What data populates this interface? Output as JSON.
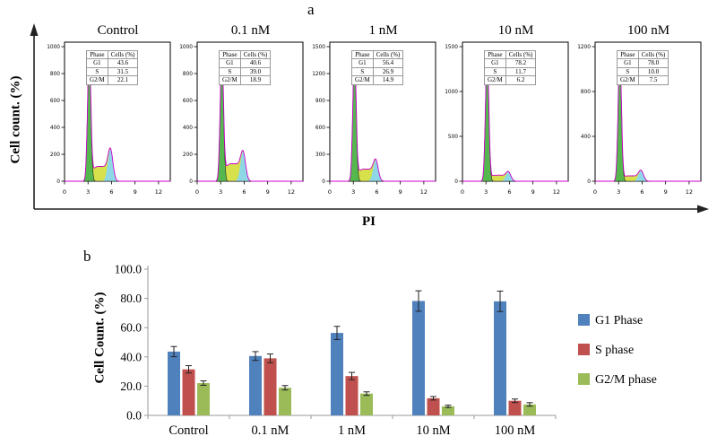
{
  "chart_data": [
    {
      "type": "area",
      "title": "Cell cycle distribution flow cytometry histograms (PI staining)",
      "xlabel": "PI",
      "ylabel": "Cell count. (%)",
      "x_ticks": [
        0,
        3,
        6,
        9,
        12
      ],
      "panels": [
        {
          "title": "Control",
          "phases": {
            "G1": 43.6,
            "S": 31.5,
            "G2/M": 22.1
          }
        },
        {
          "title": "0.1 nM",
          "phases": {
            "G1": 40.6,
            "S": 39.0,
            "G2/M": 18.9
          }
        },
        {
          "title": "1 nM",
          "phases": {
            "G1": 56.4,
            "S": 26.9,
            "G2/M": 14.9
          }
        },
        {
          "title": "10 nM",
          "phases": {
            "G1": 78.2,
            "S": 11.7,
            "G2/M": 6.2
          }
        },
        {
          "title": "100 nM",
          "phases": {
            "G1": 78.0,
            "S": 10.0,
            "G2/M": 7.5
          }
        }
      ]
    },
    {
      "type": "bar",
      "categories": [
        "Control",
        "0.1 nM",
        "1 nM",
        "10 nM",
        "100 nM"
      ],
      "series": [
        {
          "name": "G1 Phase",
          "color": "#4f81bd",
          "values": [
            43.6,
            40.6,
            56.4,
            78.2,
            78.0
          ],
          "errors": [
            3.5,
            3.0,
            4.5,
            7.0,
            7.0
          ]
        },
        {
          "name": "S phase",
          "color": "#c0504d",
          "values": [
            31.5,
            39.0,
            26.9,
            11.7,
            10.0
          ],
          "errors": [
            2.5,
            3.0,
            2.5,
            1.2,
            1.2
          ]
        },
        {
          "name": "G2/M phase",
          "color": "#9bbb59",
          "values": [
            22.1,
            18.9,
            14.9,
            6.2,
            7.5
          ],
          "errors": [
            1.5,
            1.5,
            1.2,
            0.8,
            1.2
          ]
        }
      ],
      "ylabel": "Cell Count. (%)",
      "ylim": [
        0,
        100
      ],
      "y_ticks": [
        "0.0",
        "20.0",
        "40.0",
        "60.0",
        "80.0",
        "100.0"
      ],
      "grid": false,
      "legend_position": "right"
    }
  ],
  "panel_a": {
    "label": "a",
    "y_axis_label": "Cell count. (%)",
    "x_axis_label": "PI",
    "table_header": [
      "Phase",
      "Cells (%)"
    ],
    "x_ticks": [
      "0",
      "3",
      "6",
      "9",
      "12"
    ],
    "plots": [
      {
        "title": "Control",
        "y_ticks": [
          "1000",
          "800",
          "600",
          "400",
          "200",
          "0"
        ],
        "phases": [
          [
            "G1",
            "43.6"
          ],
          [
            "S",
            "31.5"
          ],
          [
            "G2/M",
            "22.1"
          ]
        ],
        "g2_peak": 0.24,
        "s_level": 0.11
      },
      {
        "title": "0.1 nM",
        "y_ticks": [
          "1000",
          "800",
          "600",
          "400",
          "200",
          "0"
        ],
        "phases": [
          [
            "G1",
            "40.6"
          ],
          [
            "S",
            "39.0"
          ],
          [
            "G2/M",
            "18.9"
          ]
        ],
        "g2_peak": 0.22,
        "s_level": 0.13
      },
      {
        "title": "1 nM",
        "y_ticks": [
          "1500",
          "1200",
          "900",
          "600",
          "300",
          "0"
        ],
        "phases": [
          [
            "G1",
            "56.4"
          ],
          [
            "S",
            "26.9"
          ],
          [
            "G2/M",
            "14.9"
          ]
        ],
        "g2_peak": 0.16,
        "s_level": 0.09
      },
      {
        "title": "10 nM",
        "y_ticks": [
          "1500",
          "1000",
          "500",
          "0"
        ],
        "phases": [
          [
            "G1",
            "78.2"
          ],
          [
            "S",
            "11.7"
          ],
          [
            "G2/M",
            "6.2"
          ]
        ],
        "g2_peak": 0.07,
        "s_level": 0.045
      },
      {
        "title": "100 nM",
        "y_ticks": [
          "1200",
          "800",
          "400",
          "0"
        ],
        "phases": [
          [
            "G1",
            "78.0"
          ],
          [
            "S",
            "10.0"
          ],
          [
            "G2/M",
            "7.5"
          ]
        ],
        "g2_peak": 0.08,
        "s_level": 0.04
      }
    ],
    "colors": {
      "g1_fill": "#55b84f",
      "s_fill": "#d6e14b",
      "g2_fill": "#8ed8e6",
      "envelope": "#cc00cc",
      "outline": "#222222"
    }
  },
  "panel_b": {
    "label": "b",
    "y_axis_label": "Cell Count. (%)"
  }
}
